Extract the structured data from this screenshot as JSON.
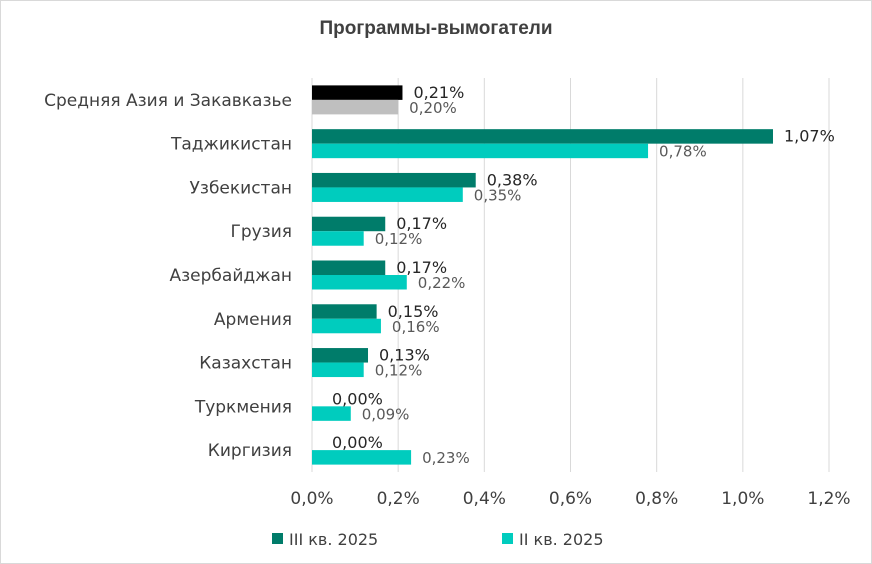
{
  "chart_data": {
    "type": "bar",
    "orientation": "horizontal",
    "title": "Программы-вымогатели",
    "categories": [
      "Средняя Азия и Закавказье",
      "Таджикистан",
      "Узбекистан",
      "Грузия",
      "Азербайджан",
      "Армения",
      "Казахстан",
      "Туркмения",
      "Киргизия"
    ],
    "series": [
      {
        "name": "III кв. 2025",
        "color": "#007c6a",
        "values": [
          0.21,
          1.07,
          0.38,
          0.17,
          0.17,
          0.15,
          0.13,
          0.0,
          0.0
        ],
        "labels": [
          "0,21%",
          "1,07%",
          "0,38%",
          "0,17%",
          "0,17%",
          "0,15%",
          "0,13%",
          "0,00%",
          "0,00%"
        ]
      },
      {
        "name": "II кв. 2025",
        "color": "#00ccbe",
        "values": [
          0.2,
          0.78,
          0.35,
          0.12,
          0.22,
          0.16,
          0.12,
          0.09,
          0.23
        ],
        "labels": [
          "0,20%",
          "0,78%",
          "0,35%",
          "0,12%",
          "0,22%",
          "0,16%",
          "0,12%",
          "0,09%",
          "0,23%"
        ]
      }
    ],
    "highlight_category_colors": {
      "III кв. 2025": "#000000",
      "II кв. 2025": "#bfbfbf"
    },
    "xlim": [
      0,
      1.2
    ],
    "xticks": [
      "0,0%",
      "0,2%",
      "0,4%",
      "0,6%",
      "0,8%",
      "1,0%",
      "1,2%"
    ],
    "grid": true,
    "legend_position": "bottom"
  }
}
